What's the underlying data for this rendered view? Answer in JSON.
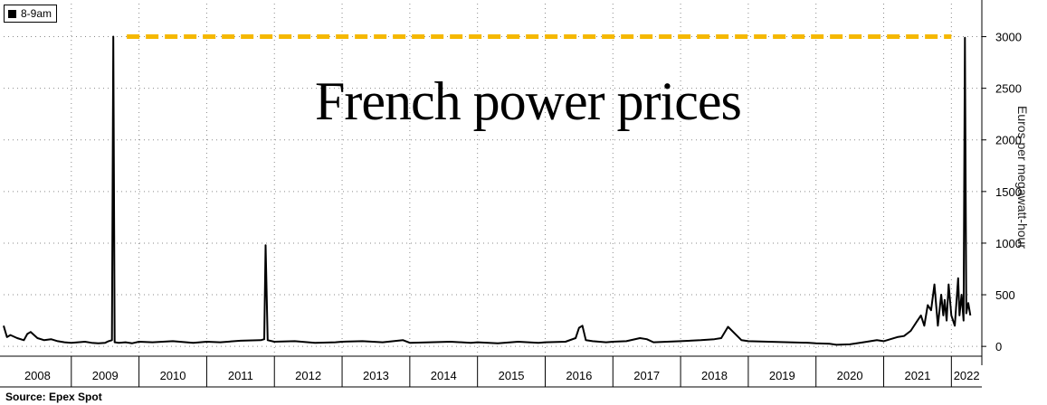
{
  "legend": {
    "label": "8-9am"
  },
  "source": "Source: Epex Spot",
  "colors": {
    "series": "#000000",
    "threshold": "#F5B800",
    "grid": "#8a8a8a"
  },
  "chart_data": {
    "type": "line",
    "title": "French power prices",
    "xlabel": "",
    "ylabel": "Euros per megawatt-hour",
    "ylim": [
      -95,
      3320
    ],
    "xlim": [
      2008,
      2022.45
    ],
    "yticks": [
      0,
      500,
      1000,
      1500,
      2000,
      2500,
      3000
    ],
    "xticks": [
      "2008",
      "2009",
      "2010",
      "2011",
      "2012",
      "2013",
      "2014",
      "2015",
      "2016",
      "2017",
      "2018",
      "2019",
      "2020",
      "2021",
      "2022"
    ],
    "grid": true,
    "legend_position": "top-left",
    "threshold_line": {
      "value": 3000,
      "style": "dashed",
      "x_from": 2009.82,
      "x_to": 2022.0
    },
    "series": [
      {
        "name": "8-9am",
        "x": [
          2008.0,
          2008.05,
          2008.1,
          2008.2,
          2008.3,
          2008.35,
          2008.4,
          2008.5,
          2008.6,
          2008.7,
          2008.8,
          2008.9,
          2009.0,
          2009.1,
          2009.2,
          2009.3,
          2009.4,
          2009.5,
          2009.55,
          2009.6,
          2009.62,
          2009.64,
          2009.7,
          2009.8,
          2009.9,
          2010.0,
          2010.2,
          2010.5,
          2010.8,
          2011.0,
          2011.2,
          2011.5,
          2011.8,
          2011.85,
          2011.87,
          2011.9,
          2012.0,
          2012.3,
          2012.6,
          2012.9,
          2013.0,
          2013.3,
          2013.6,
          2013.9,
          2014.0,
          2014.3,
          2014.6,
          2014.9,
          2015.0,
          2015.3,
          2015.6,
          2015.9,
          2016.0,
          2016.3,
          2016.45,
          2016.5,
          2016.55,
          2016.6,
          2016.7,
          2016.9,
          2017.0,
          2017.2,
          2017.4,
          2017.5,
          2017.6,
          2017.8,
          2018.0,
          2018.3,
          2018.5,
          2018.6,
          2018.7,
          2018.9,
          2019.0,
          2019.3,
          2019.6,
          2019.9,
          2020.0,
          2020.2,
          2020.3,
          2020.5,
          2020.7,
          2020.9,
          2021.0,
          2021.1,
          2021.2,
          2021.3,
          2021.4,
          2021.5,
          2021.55,
          2021.6,
          2021.65,
          2021.7,
          2021.75,
          2021.8,
          2021.85,
          2021.88,
          2021.9,
          2021.93,
          2021.96,
          2022.0,
          2022.05,
          2022.1,
          2022.12,
          2022.15,
          2022.18,
          2022.2,
          2022.22,
          2022.25,
          2022.28
        ],
        "values": [
          200,
          90,
          110,
          80,
          60,
          120,
          140,
          80,
          60,
          70,
          50,
          40,
          35,
          40,
          45,
          35,
          30,
          35,
          50,
          60,
          3000,
          40,
          35,
          40,
          30,
          45,
          40,
          50,
          35,
          45,
          40,
          55,
          60,
          70,
          980,
          60,
          45,
          50,
          35,
          40,
          45,
          50,
          40,
          60,
          35,
          40,
          45,
          35,
          40,
          30,
          45,
          35,
          40,
          45,
          80,
          180,
          200,
          60,
          50,
          40,
          45,
          50,
          80,
          70,
          40,
          45,
          50,
          60,
          70,
          80,
          190,
          60,
          50,
          45,
          40,
          35,
          30,
          25,
          15,
          20,
          40,
          60,
          50,
          70,
          90,
          100,
          150,
          250,
          300,
          200,
          400,
          350,
          600,
          200,
          500,
          300,
          450,
          250,
          600,
          300,
          200,
          660,
          300,
          500,
          250,
          2990,
          320,
          420,
          300
        ]
      }
    ]
  }
}
